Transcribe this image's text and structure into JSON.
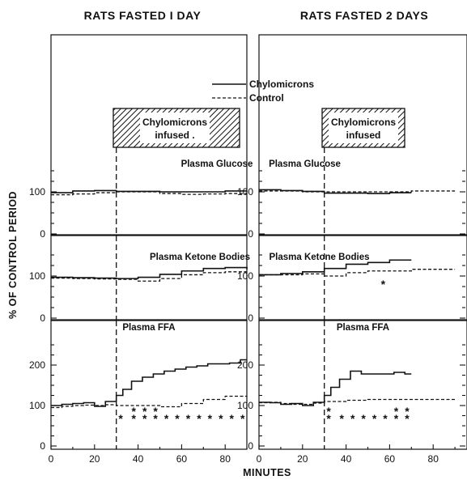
{
  "column_titles": [
    "RATS FASTED I DAY",
    "RATS FASTED 2 DAYS"
  ],
  "legend": {
    "solid": "Chylomicrons",
    "dashed": "Control"
  },
  "box_label": {
    "left": [
      "Chylomicrons",
      "infused ."
    ],
    "right": [
      "Chylomicrons",
      "infused"
    ]
  },
  "panel_titles": [
    "Plasma Glucose",
    "Plasma Ketone Bodies",
    "Plasma FFA"
  ],
  "ylabel": "% OF CONTROL PERIOD",
  "xlabel": "MINUTES",
  "colors": {
    "ink": "#111111",
    "background": "#ffffff"
  },
  "chart_data": [
    {
      "type": "line",
      "step": true,
      "title": "Plasma Glucose",
      "column": "RATS FASTED I DAY",
      "xlim": [
        0,
        90
      ],
      "ylim": [
        0,
        150
      ],
      "yticks": [
        0,
        100
      ],
      "infusion_start": 30,
      "infusion_end": 90,
      "series": [
        {
          "name": "Chylomicrons",
          "style": "solid",
          "x": [
            0,
            10,
            20,
            30,
            40,
            50,
            60,
            70,
            80,
            90
          ],
          "y": [
            98,
            102,
            103,
            101,
            101,
            100,
            100,
            100,
            102,
            102
          ]
        },
        {
          "name": "Control",
          "style": "dashed",
          "x": [
            0,
            10,
            20,
            30,
            40,
            50,
            60,
            70,
            80,
            90
          ],
          "y": [
            93,
            95,
            98,
            100,
            100,
            96,
            94,
            95,
            96,
            96
          ]
        }
      ],
      "stars": []
    },
    {
      "type": "line",
      "step": true,
      "title": "Plasma Ketone Bodies",
      "column": "RATS FASTED I DAY",
      "xlim": [
        0,
        90
      ],
      "ylim": [
        0,
        150
      ],
      "yticks": [
        0,
        100
      ],
      "infusion_start": 30,
      "infusion_end": 90,
      "series": [
        {
          "name": "Chylomicrons",
          "style": "solid",
          "x": [
            0,
            10,
            20,
            30,
            40,
            50,
            60,
            70,
            80,
            90
          ],
          "y": [
            97,
            96,
            95,
            94,
            97,
            104,
            112,
            118,
            120,
            116
          ]
        },
        {
          "name": "Control",
          "style": "dashed",
          "x": [
            0,
            10,
            20,
            30,
            40,
            50,
            60,
            70,
            80,
            90
          ],
          "y": [
            95,
            94,
            93,
            92,
            88,
            94,
            103,
            108,
            110,
            110
          ]
        }
      ],
      "stars": []
    },
    {
      "type": "line",
      "step": true,
      "title": "Plasma FFA",
      "column": "RATS FASTED I DAY",
      "xlim": [
        0,
        90
      ],
      "ylim": [
        0,
        250
      ],
      "yticks": [
        0,
        100,
        200
      ],
      "infusion_start": 30,
      "infusion_end": 90,
      "series": [
        {
          "name": "Chylomicrons",
          "style": "solid",
          "x": [
            0,
            5,
            10,
            15,
            20,
            25,
            30,
            33,
            37,
            42,
            47,
            52,
            57,
            62,
            67,
            72,
            77,
            82,
            87,
            90
          ],
          "y": [
            100,
            103,
            105,
            107,
            98,
            110,
            125,
            140,
            160,
            170,
            178,
            185,
            190,
            195,
            198,
            203,
            203,
            205,
            213,
            213
          ]
        },
        {
          "name": "Control",
          "style": "dashed",
          "x": [
            0,
            5,
            10,
            15,
            20,
            25,
            30,
            40,
            50,
            60,
            70,
            80,
            90
          ],
          "y": [
            95,
            98,
            100,
            101,
            100,
            102,
            100,
            100,
            97,
            105,
            115,
            123,
            123
          ]
        }
      ],
      "stars": [
        {
          "x": 32,
          "rows": 1
        },
        {
          "x": 38,
          "rows": 2
        },
        {
          "x": 43,
          "rows": 2
        },
        {
          "x": 48,
          "rows": 2
        },
        {
          "x": 53,
          "rows": 1
        },
        {
          "x": 58,
          "rows": 1
        },
        {
          "x": 63,
          "rows": 1
        },
        {
          "x": 68,
          "rows": 1
        },
        {
          "x": 73,
          "rows": 1
        },
        {
          "x": 78,
          "rows": 1
        },
        {
          "x": 83,
          "rows": 1
        },
        {
          "x": 88,
          "rows": 1
        }
      ]
    },
    {
      "type": "line",
      "step": true,
      "title": "Plasma Glucose",
      "column": "RATS FASTED 2 DAYS",
      "xlim": [
        0,
        100
      ],
      "ylim": [
        0,
        150
      ],
      "yticks": [
        0,
        100
      ],
      "infusion_start": 30,
      "infusion_end": 100,
      "series": [
        {
          "name": "Chylomicrons",
          "style": "solid",
          "x": [
            0,
            10,
            20,
            30,
            40,
            50,
            60,
            70
          ],
          "y": [
            105,
            103,
            101,
            97,
            97,
            96,
            98,
            98
          ]
        },
        {
          "name": "Control",
          "style": "dashed",
          "x": [
            0,
            10,
            20,
            30,
            40,
            50,
            60,
            70,
            80,
            90
          ],
          "y": [
            102,
            102,
            100,
            100,
            100,
            100,
            100,
            102,
            102,
            102
          ]
        }
      ],
      "stars": []
    },
    {
      "type": "line",
      "step": true,
      "title": "Plasma Ketone Bodies",
      "column": "RATS FASTED 2 DAYS",
      "xlim": [
        0,
        100
      ],
      "ylim": [
        0,
        150
      ],
      "yticks": [
        0,
        100
      ],
      "infusion_start": 30,
      "infusion_end": 100,
      "series": [
        {
          "name": "Chylomicrons",
          "style": "solid",
          "x": [
            0,
            10,
            20,
            30,
            40,
            50,
            60,
            70
          ],
          "y": [
            103,
            106,
            110,
            118,
            128,
            132,
            138,
            138
          ]
        },
        {
          "name": "Control",
          "style": "dashed",
          "x": [
            0,
            10,
            20,
            30,
            40,
            50,
            60,
            70,
            80,
            90
          ],
          "y": [
            103,
            103,
            105,
            100,
            108,
            112,
            112,
            116,
            116,
            116
          ]
        }
      ],
      "stars": [
        {
          "x": 57,
          "rows": 1
        }
      ]
    },
    {
      "type": "line",
      "step": true,
      "title": "Plasma FFA",
      "column": "RATS FASTED 2 DAYS",
      "xlim": [
        0,
        100
      ],
      "ylim": [
        0,
        250
      ],
      "yticks": [
        0,
        100,
        200
      ],
      "infusion_start": 30,
      "infusion_end": 100,
      "series": [
        {
          "name": "Chylomicrons",
          "style": "solid",
          "x": [
            0,
            5,
            10,
            15,
            20,
            25,
            30,
            33,
            37,
            42,
            47,
            52,
            57,
            62,
            67,
            70
          ],
          "y": [
            108,
            107,
            103,
            105,
            100,
            108,
            125,
            145,
            165,
            185,
            178,
            178,
            178,
            182,
            178,
            178
          ]
        },
        {
          "name": "Control",
          "style": "dashed",
          "x": [
            0,
            5,
            10,
            15,
            20,
            25,
            30,
            40,
            50,
            60,
            70,
            80,
            90
          ],
          "y": [
            107,
            108,
            105,
            103,
            103,
            106,
            110,
            113,
            115,
            115,
            115,
            115,
            115
          ]
        }
      ],
      "stars": [
        {
          "x": 32,
          "rows": 2
        },
        {
          "x": 38,
          "rows": 1
        },
        {
          "x": 43,
          "rows": 1
        },
        {
          "x": 48,
          "rows": 1
        },
        {
          "x": 53,
          "rows": 1
        },
        {
          "x": 58,
          "rows": 1
        },
        {
          "x": 63,
          "rows": 2
        },
        {
          "x": 68,
          "rows": 2
        }
      ]
    }
  ]
}
